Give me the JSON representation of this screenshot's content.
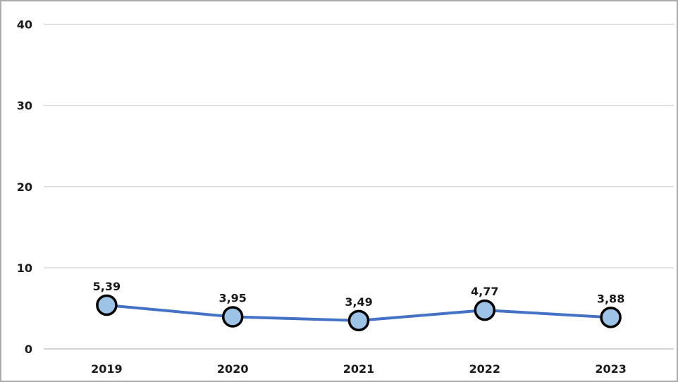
{
  "chart_data": {
    "type": "line",
    "title": "",
    "categories": [
      "2019",
      "2020",
      "2021",
      "2022",
      "2023"
    ],
    "values": [
      5.39,
      3.95,
      3.49,
      4.77,
      3.88
    ],
    "data_labels": [
      "5,39",
      "3,95",
      "3,49",
      "4,77",
      "3,88"
    ],
    "xlabel": "",
    "ylabel": "",
    "ylim": [
      0,
      40
    ],
    "yticks": [
      0,
      10,
      20,
      30,
      40
    ],
    "ytick_labels": [
      "0",
      "10",
      "20",
      "30",
      "40"
    ],
    "grid": true,
    "legend_position": "none",
    "decimal_separator": ",",
    "colors": {
      "line": "#4472C4",
      "marker_fill": "#9DC3E6",
      "marker_border": "#000000",
      "gridline": "#DBDBDB",
      "axis_line": "#C6C6C6",
      "label_text": "#1a1a1a",
      "frame_border": "#ABABAB",
      "background": "#FFFFFF"
    }
  }
}
